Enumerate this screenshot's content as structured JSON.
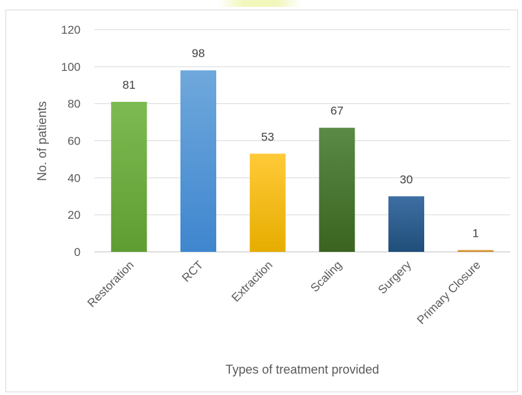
{
  "chart_data": {
    "type": "bar",
    "categories": [
      "Restoration",
      "RCT",
      "Extraction",
      "Scaling",
      "Surgery",
      "Primary Closure"
    ],
    "values": [
      81,
      98,
      53,
      67,
      30,
      1
    ],
    "data_labels": [
      "81",
      "98",
      "53",
      "67",
      "30",
      "1"
    ],
    "xlabel": "Types of treatment provided",
    "ylabel": "No. of patients",
    "ylim": [
      0,
      120
    ],
    "yticks": [
      0,
      20,
      40,
      60,
      80,
      100,
      120
    ],
    "grid": true,
    "legend": "none",
    "bar_colors": [
      [
        "#7dbb52",
        "#5f9c32"
      ],
      [
        "#6fa8dc",
        "#3f86cf"
      ],
      [
        "#ffca38",
        "#e6ad00"
      ],
      [
        "#5a8a46",
        "#3a6420"
      ],
      [
        "#3f6fa3",
        "#1f4e7a"
      ],
      [
        "#e8a84a",
        "#c88420"
      ]
    ]
  }
}
